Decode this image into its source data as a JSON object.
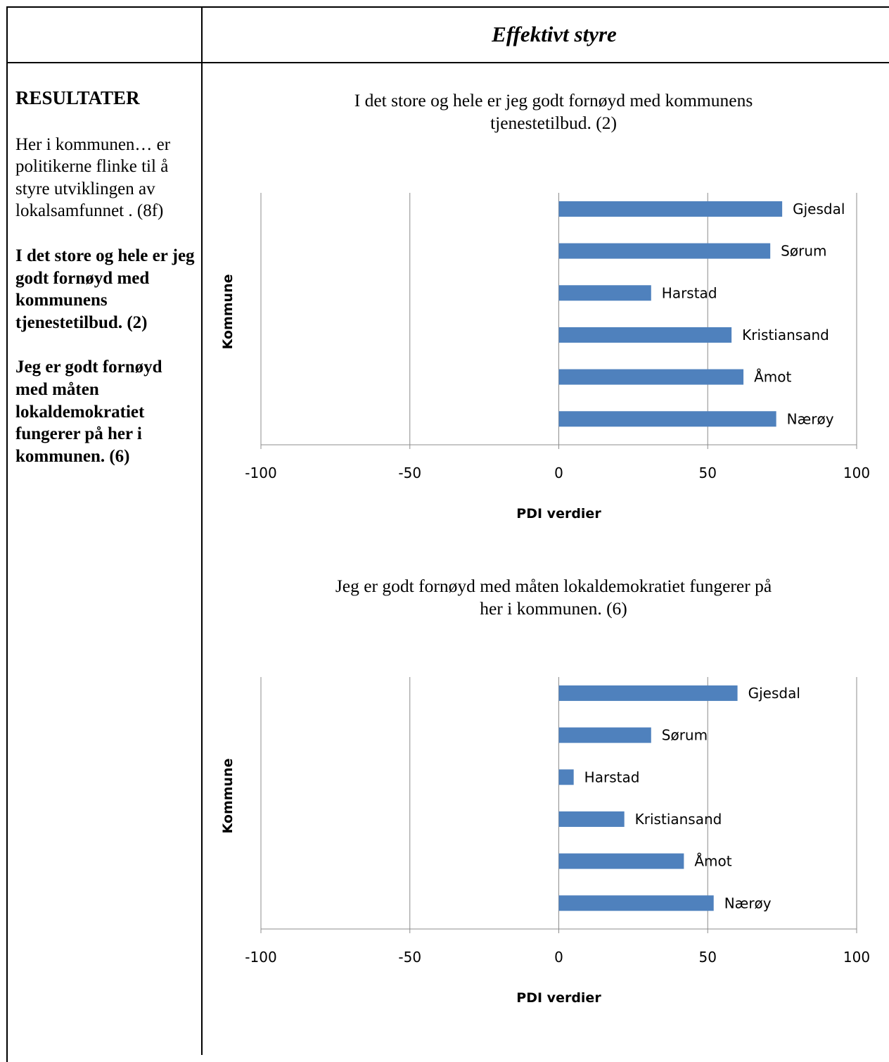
{
  "header": {
    "title": "Effektivt styre"
  },
  "sidebar": {
    "heading": "RESULTATER",
    "intro": "Her i kommunen… er politikerne flinke til å styre utviklingen av lokalsamfunnet . (8f)",
    "item1": "I det store og hele er jeg godt fornøyd med kommunens tjenestetilbud. (2)",
    "item2": "Jeg er godt fornøyd med måten lokaldemokratiet fungerer på her i kommunen. (6)"
  },
  "chart_data": [
    {
      "type": "bar",
      "orientation": "horizontal",
      "title_line1": "I det store og hele er jeg godt fornøyd med kommunens",
      "title_line2": "tjenestetilbud. (2)",
      "xlabel": "PDI verdier",
      "ylabel": "Kommune",
      "xlim": [
        -100,
        100
      ],
      "xticks": [
        "-100",
        "-50",
        "0",
        "50",
        "100"
      ],
      "categories": [
        "Gjesdal",
        "Sørum",
        "Harstad",
        "Kristiansand",
        "Åmot",
        "Nærøy"
      ],
      "values": [
        75,
        71,
        31,
        58,
        62,
        73
      ],
      "bar_color": "#4f81bd",
      "grid": "vertical major gridlines"
    },
    {
      "type": "bar",
      "orientation": "horizontal",
      "title_line1": "Jeg er godt fornøyd med måten lokaldemokratiet fungerer på",
      "title_line2": "her i kommunen. (6)",
      "xlabel": "PDI verdier",
      "ylabel": "Kommune",
      "xlim": [
        -100,
        100
      ],
      "xticks": [
        "-100",
        "-50",
        "0",
        "50",
        "100"
      ],
      "categories": [
        "Gjesdal",
        "Sørum",
        "Harstad",
        "Kristiansand",
        "Åmot",
        "Nærøy"
      ],
      "values": [
        60,
        31,
        5,
        22,
        42,
        52
      ],
      "bar_color": "#4f81bd",
      "grid": "vertical major gridlines"
    }
  ]
}
